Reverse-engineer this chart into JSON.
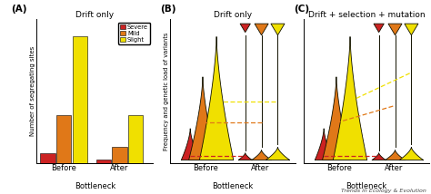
{
  "panel_a": {
    "title": "Drift only",
    "label": "(A)",
    "ylabel": "Number of segregating sites",
    "before_severe": 0.08,
    "before_mild": 0.38,
    "before_slight": 1.0,
    "after_severe": 0.025,
    "after_mild": 0.13,
    "after_slight": 0.38
  },
  "panel_b": {
    "title": "Drift only",
    "label": "(B)",
    "ylabel": "Frequency and genetic load of variants"
  },
  "panel_c": {
    "title": "Drift + selection + mutation",
    "label": "(C)"
  },
  "footer": "Trends in Ecology & Evolution",
  "colors": {
    "severe": "#cc2222",
    "mild": "#e07818",
    "slight": "#f0e000",
    "outline": "#111100"
  }
}
